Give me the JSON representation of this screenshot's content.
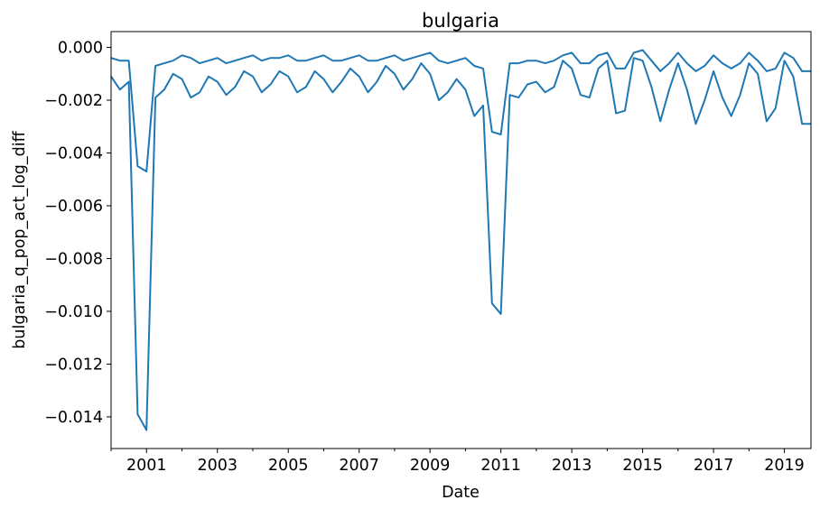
{
  "chart_data": {
    "type": "line",
    "title": "bulgaria",
    "xlabel": "Date",
    "ylabel": "bulgaria_q_pop_act_log_diff",
    "x_range": [
      "2000-01",
      "2019-10"
    ],
    "ylim": [
      -0.0152,
      0.0006
    ],
    "x_ticks": [
      "2001",
      "2003",
      "2005",
      "2007",
      "2009",
      "2011",
      "2013",
      "2015",
      "2017",
      "2019"
    ],
    "y_ticks": [
      "0.000",
      "−0.002",
      "−0.004",
      "−0.006",
      "−0.008",
      "−0.010",
      "−0.012",
      "−0.014"
    ],
    "grid": false,
    "color": "#1f77b4",
    "series": [
      {
        "x": [
          "2000-01",
          "2000-04",
          "2000-07",
          "2000-10",
          "2001-01",
          "2001-04",
          "2001-07",
          "2001-10",
          "2002-01",
          "2002-04",
          "2002-07",
          "2002-10",
          "2003-01",
          "2003-04",
          "2003-07",
          "2003-10",
          "2004-01",
          "2004-04",
          "2004-07",
          "2004-10",
          "2005-01",
          "2005-04",
          "2005-07",
          "2005-10",
          "2006-01",
          "2006-04",
          "2006-07",
          "2006-10",
          "2007-01",
          "2007-04",
          "2007-07",
          "2007-10",
          "2008-01",
          "2008-04",
          "2008-07",
          "2008-10",
          "2009-01",
          "2009-04",
          "2009-07",
          "2009-10",
          "2010-01",
          "2010-04",
          "2010-07",
          "2010-10",
          "2011-01",
          "2011-04",
          "2011-07",
          "2011-10",
          "2012-01",
          "2012-04",
          "2012-07",
          "2012-10",
          "2013-01",
          "2013-04",
          "2013-07",
          "2013-10",
          "2014-01",
          "2014-04",
          "2014-07",
          "2014-10",
          "2015-01",
          "2015-04",
          "2015-07",
          "2015-10",
          "2016-01",
          "2016-04",
          "2016-07",
          "2016-10",
          "2017-01",
          "2017-04",
          "2017-07",
          "2017-10",
          "2018-01",
          "2018-04",
          "2018-07",
          "2018-10",
          "2019-01",
          "2019-04",
          "2019-07",
          "2019-10"
        ],
        "values": [
          -0.0004,
          -0.0005,
          -0.0005,
          -0.0045,
          -0.0047,
          -0.0007,
          -0.0006,
          -0.0005,
          -0.0003,
          -0.0004,
          -0.0006,
          -0.0005,
          -0.0004,
          -0.0006,
          -0.0005,
          -0.0004,
          -0.0003,
          -0.0005,
          -0.0004,
          -0.0004,
          -0.0003,
          -0.0005,
          -0.0005,
          -0.0004,
          -0.0003,
          -0.0005,
          -0.0005,
          -0.0004,
          -0.0003,
          -0.0005,
          -0.0005,
          -0.0004,
          -0.0003,
          -0.0005,
          -0.0004,
          -0.0003,
          -0.0002,
          -0.0005,
          -0.0006,
          -0.0005,
          -0.0004,
          -0.0007,
          -0.0008,
          -0.0032,
          -0.0033,
          -0.0006,
          -0.0006,
          -0.0005,
          -0.0005,
          -0.0006,
          -0.0005,
          -0.0003,
          -0.0002,
          -0.0006,
          -0.0006,
          -0.0003,
          -0.0002,
          -0.0008,
          -0.0008,
          -0.0002,
          -0.0001,
          -0.0005,
          -0.0009,
          -0.0006,
          -0.0002,
          -0.0006,
          -0.0009,
          -0.0007,
          -0.0003,
          -0.0006,
          -0.0008,
          -0.0006,
          -0.0002,
          -0.0005,
          -0.0009,
          -0.0008,
          -0.0002,
          -0.0004,
          -0.0009,
          -0.0009
        ]
      },
      {
        "x": [
          "2000-01",
          "2000-04",
          "2000-07",
          "2000-10",
          "2001-01",
          "2001-04",
          "2001-07",
          "2001-10",
          "2002-01",
          "2002-04",
          "2002-07",
          "2002-10",
          "2003-01",
          "2003-04",
          "2003-07",
          "2003-10",
          "2004-01",
          "2004-04",
          "2004-07",
          "2004-10",
          "2005-01",
          "2005-04",
          "2005-07",
          "2005-10",
          "2006-01",
          "2006-04",
          "2006-07",
          "2006-10",
          "2007-01",
          "2007-04",
          "2007-07",
          "2007-10",
          "2008-01",
          "2008-04",
          "2008-07",
          "2008-10",
          "2009-01",
          "2009-04",
          "2009-07",
          "2009-10",
          "2010-01",
          "2010-04",
          "2010-07",
          "2010-10",
          "2011-01",
          "2011-04",
          "2011-07",
          "2011-10",
          "2012-01",
          "2012-04",
          "2012-07",
          "2012-10",
          "2013-01",
          "2013-04",
          "2013-07",
          "2013-10",
          "2014-01",
          "2014-04",
          "2014-07",
          "2014-10",
          "2015-01",
          "2015-04",
          "2015-07",
          "2015-10",
          "2016-01",
          "2016-04",
          "2016-07",
          "2016-10",
          "2017-01",
          "2017-04",
          "2017-07",
          "2017-10",
          "2018-01",
          "2018-04",
          "2018-07",
          "2018-10",
          "2019-01",
          "2019-04",
          "2019-07",
          "2019-10"
        ],
        "values": [
          -0.0011,
          -0.0016,
          -0.0013,
          -0.0139,
          -0.0145,
          -0.0019,
          -0.0016,
          -0.001,
          -0.0012,
          -0.0019,
          -0.0017,
          -0.0011,
          -0.0013,
          -0.0018,
          -0.0015,
          -0.0009,
          -0.0011,
          -0.0017,
          -0.0014,
          -0.0009,
          -0.0011,
          -0.0017,
          -0.0015,
          -0.0009,
          -0.0012,
          -0.0017,
          -0.0013,
          -0.0008,
          -0.0011,
          -0.0017,
          -0.0013,
          -0.0007,
          -0.001,
          -0.0016,
          -0.0012,
          -0.0006,
          -0.001,
          -0.002,
          -0.0017,
          -0.0012,
          -0.0016,
          -0.0026,
          -0.0022,
          -0.0097,
          -0.0101,
          -0.0018,
          -0.0019,
          -0.0014,
          -0.0013,
          -0.0017,
          -0.0015,
          -0.0005,
          -0.0008,
          -0.0018,
          -0.0019,
          -0.0008,
          -0.0005,
          -0.0025,
          -0.0024,
          -0.0004,
          -0.0005,
          -0.0015,
          -0.0028,
          -0.0016,
          -0.0006,
          -0.0016,
          -0.0029,
          -0.002,
          -0.0009,
          -0.0019,
          -0.0026,
          -0.0018,
          -0.0006,
          -0.001,
          -0.0028,
          -0.0023,
          -0.0005,
          -0.0011,
          -0.0029,
          -0.0029
        ]
      }
    ]
  }
}
